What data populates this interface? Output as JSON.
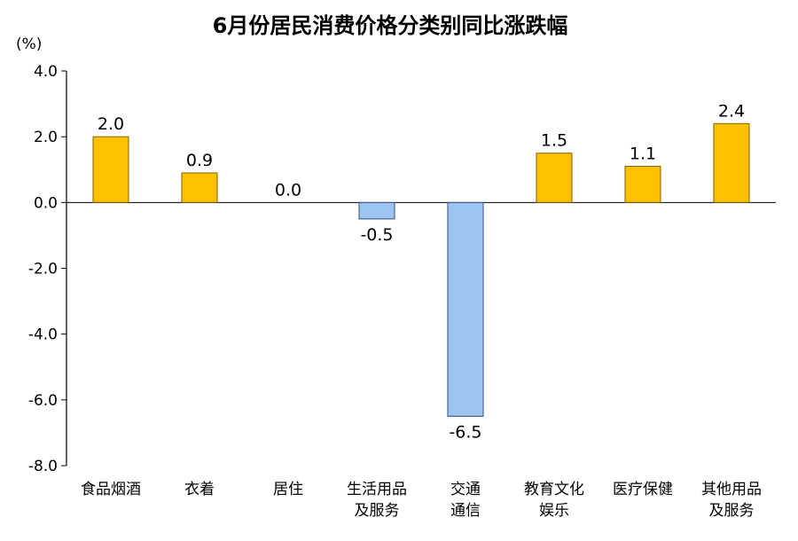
{
  "chart_data": {
    "type": "bar",
    "title": "6月份居民消费价格分类别同比涨跌幅",
    "unit": "(%)",
    "categories": [
      [
        "食品烟酒"
      ],
      [
        "衣着"
      ],
      [
        "居住"
      ],
      [
        "生活用品",
        "及服务"
      ],
      [
        "交通",
        "通信"
      ],
      [
        "教育文化",
        "娱乐"
      ],
      [
        "医疗保健"
      ],
      [
        "其他用品",
        "及服务"
      ]
    ],
    "values": [
      2.0,
      0.9,
      0.0,
      -0.5,
      -6.5,
      1.5,
      1.1,
      2.4
    ],
    "data_labels": [
      "2.0",
      "0.9",
      "0.0",
      "-0.5",
      "-6.5",
      "1.5",
      "1.1",
      "2.4"
    ],
    "ylim": [
      -8.0,
      4.0
    ],
    "yticks": [
      "4.0",
      "2.0",
      "0.0",
      "-2.0",
      "-4.0",
      "-6.0",
      "-8.0"
    ],
    "ytick_values": [
      4,
      2,
      0,
      -2,
      -4,
      -6,
      -8
    ],
    "grid": false,
    "legend": "none",
    "colors": {
      "positive_fill": "#FFC000",
      "positive_stroke": "#7F6000",
      "negative_fill": "#9DC3F0",
      "negative_stroke": "#2F4F7F",
      "axis": "#000000"
    }
  }
}
